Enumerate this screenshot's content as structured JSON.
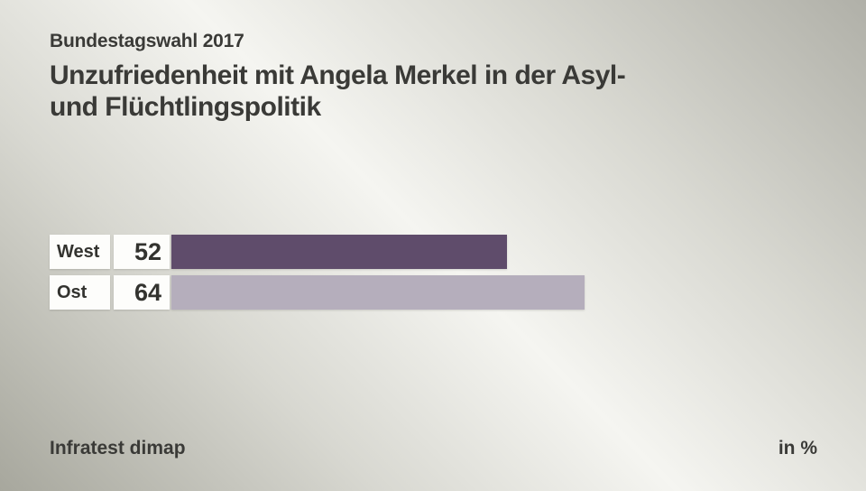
{
  "header": {
    "kicker": "Bundestagswahl 2017",
    "title_lines": [
      "Unzufriedenheit mit Angela Merkel in der Asyl-",
      "und Flüchtlingspolitik"
    ]
  },
  "footer": {
    "source": "Infratest dimap",
    "unit_label": "in %"
  },
  "colors": {
    "text": "#3a3a37",
    "label_box_bg": "#fdfdfb",
    "bar_west": "#5f4c6b",
    "bar_ost": "#b5aebc",
    "background_light": "#f5f5f1",
    "background_dark": "#aaaaa1"
  },
  "chart_data": {
    "type": "bar",
    "orientation": "horizontal",
    "title": "Unzufriedenheit mit Angela Merkel in der Asyl- und Flüchtlingspolitik",
    "subtitle": "Bundestagswahl 2017",
    "source": "Infratest dimap",
    "unit": "%",
    "categories": [
      "West",
      "Ost"
    ],
    "values": [
      52,
      64
    ],
    "bar_colors": [
      "#5f4c6b",
      "#b5aebc"
    ],
    "value_range": [
      0,
      100
    ],
    "grid": false,
    "legend": false
  }
}
